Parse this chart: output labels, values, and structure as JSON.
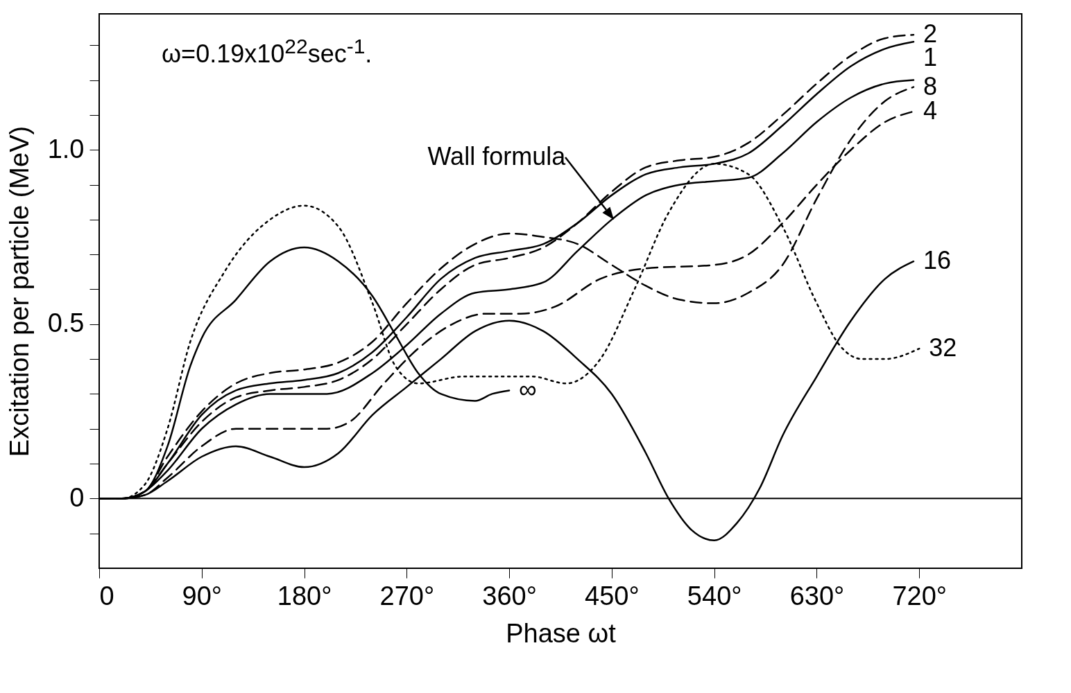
{
  "chart_data": {
    "type": "line",
    "xlabel": "Phase ωt",
    "ylabel": "Excitation per particle  (MeV)",
    "xlim": [
      0,
      810
    ],
    "ylim": [
      -0.2,
      1.39
    ],
    "xticks": [
      0,
      {
        "value": 90,
        "label": "90°"
      },
      {
        "value": 180,
        "label": "180°"
      },
      {
        "value": 270,
        "label": "270°"
      },
      {
        "value": 360,
        "label": "360°"
      },
      {
        "value": 450,
        "label": "450°"
      },
      {
        "value": 540,
        "label": "540°"
      },
      {
        "value": 630,
        "label": "630°"
      },
      {
        "value": 720,
        "label": "720°"
      }
    ],
    "yticks": [
      {
        "value": -0.1,
        "label": null
      },
      0,
      {
        "value": 0.1,
        "label": null
      },
      {
        "value": 0.2,
        "label": null
      },
      {
        "value": 0.3,
        "label": null
      },
      {
        "value": 0.4,
        "label": null
      },
      0.5,
      {
        "value": 0.6,
        "label": null
      },
      {
        "value": 0.7,
        "label": null
      },
      {
        "value": 0.8,
        "label": null
      },
      {
        "value": 0.9,
        "label": null
      },
      {
        "value": 1,
        "label": "1.0"
      },
      {
        "value": 1.1,
        "label": null
      },
      {
        "value": 1.2,
        "label": null
      },
      {
        "value": 1.3,
        "label": null
      }
    ],
    "grid": false,
    "series": [
      {
        "name": "2",
        "color": "#000000",
        "line_style": "dashed",
        "x": [
          0,
          20,
          40,
          60,
          90,
          120,
          150,
          180,
          210,
          240,
          270,
          300,
          330,
          360,
          390,
          420,
          450,
          480,
          510,
          540,
          570,
          600,
          630,
          660,
          690,
          715
        ],
        "values": [
          0,
          0,
          0.02,
          0.1,
          0.22,
          0.29,
          0.31,
          0.32,
          0.34,
          0.4,
          0.5,
          0.6,
          0.67,
          0.69,
          0.72,
          0.79,
          0.88,
          0.95,
          0.97,
          0.98,
          1.02,
          1.1,
          1.19,
          1.27,
          1.32,
          1.33
        ]
      },
      {
        "name": "1",
        "color": "#000000",
        "line_style": "solid",
        "x": [
          0,
          20,
          40,
          60,
          90,
          120,
          150,
          180,
          210,
          240,
          270,
          300,
          330,
          360,
          390,
          420,
          450,
          480,
          510,
          540,
          570,
          600,
          630,
          660,
          690,
          715
        ],
        "values": [
          0,
          0,
          0.02,
          0.1,
          0.24,
          0.31,
          0.33,
          0.34,
          0.36,
          0.42,
          0.52,
          0.63,
          0.69,
          0.71,
          0.73,
          0.79,
          0.87,
          0.93,
          0.95,
          0.96,
          0.99,
          1.07,
          1.16,
          1.24,
          1.29,
          1.31
        ]
      },
      {
        "name": "8",
        "color": "#000000",
        "line_style": "dashed",
        "x": [
          0,
          20,
          40,
          60,
          90,
          120,
          150,
          180,
          210,
          240,
          270,
          300,
          330,
          360,
          390,
          420,
          450,
          480,
          510,
          540,
          570,
          600,
          630,
          660,
          690,
          715
        ],
        "values": [
          0,
          0,
          0.02,
          0.12,
          0.25,
          0.33,
          0.36,
          0.37,
          0.39,
          0.45,
          0.56,
          0.66,
          0.73,
          0.76,
          0.75,
          0.73,
          0.67,
          0.61,
          0.57,
          0.56,
          0.59,
          0.67,
          0.86,
          1.03,
          1.14,
          1.18
        ]
      },
      {
        "name": "4",
        "color": "#000000",
        "line_style": "dashed",
        "x": [
          0,
          20,
          40,
          60,
          90,
          120,
          150,
          180,
          200,
          220,
          250,
          280,
          310,
          340,
          370,
          400,
          440,
          480,
          540,
          570,
          600,
          630,
          660,
          690,
          715
        ],
        "values": [
          0,
          0,
          0.01,
          0.06,
          0.15,
          0.2,
          0.2,
          0.2,
          0.2,
          0.22,
          0.33,
          0.43,
          0.5,
          0.53,
          0.53,
          0.55,
          0.63,
          0.66,
          0.67,
          0.7,
          0.79,
          0.9,
          1.0,
          1.08,
          1.11
        ]
      },
      {
        "name": "16",
        "color": "#000000",
        "line_style": "solid",
        "x": [
          0,
          20,
          40,
          60,
          90,
          120,
          150,
          180,
          210,
          240,
          270,
          300,
          330,
          360,
          390,
          420,
          450,
          480,
          500,
          520,
          540,
          560,
          580,
          600,
          630,
          660,
          690,
          715
        ],
        "values": [
          0,
          0,
          0.01,
          0.05,
          0.12,
          0.15,
          0.12,
          0.09,
          0.13,
          0.24,
          0.32,
          0.4,
          0.48,
          0.51,
          0.48,
          0.4,
          0.3,
          0.13,
          0,
          -0.09,
          -0.12,
          -0.07,
          0.03,
          0.18,
          0.35,
          0.51,
          0.63,
          0.68
        ]
      },
      {
        "name": "32",
        "color": "#000000",
        "line_style": "dotted",
        "x": [
          0,
          20,
          40,
          60,
          80,
          110,
          150,
          180,
          210,
          240,
          260,
          280,
          320,
          380,
          410,
          440,
          470,
          500,
          540,
          570,
          600,
          630,
          650,
          670,
          690,
          720
        ],
        "values": [
          0,
          0,
          0.04,
          0.2,
          0.45,
          0.65,
          0.8,
          0.84,
          0.78,
          0.56,
          0.38,
          0.33,
          0.35,
          0.35,
          0.33,
          0.4,
          0.6,
          0.82,
          0.96,
          0.93,
          0.78,
          0.56,
          0.44,
          0.4,
          0.4,
          0.43
        ]
      },
      {
        "name": "∞",
        "color": "#000000",
        "line_style": "solid",
        "x": [
          0,
          20,
          40,
          60,
          80,
          90,
          120,
          150,
          180,
          210,
          240,
          260,
          280,
          300,
          330,
          345,
          360
        ],
        "values": [
          0,
          0,
          0.02,
          0.15,
          0.38,
          0.46,
          0.57,
          0.68,
          0.72,
          0.68,
          0.58,
          0.47,
          0.36,
          0.3,
          0.28,
          0.3,
          0.31
        ]
      },
      {
        "color": "#000000",
        "line_style": "solid",
        "x": [
          0,
          20,
          40,
          60,
          90,
          120,
          150,
          200,
          240,
          270,
          300,
          330,
          360,
          390,
          420,
          450,
          480,
          510,
          540,
          570,
          600,
          630,
          660,
          690,
          715
        ],
        "values": [
          0,
          0,
          0.02,
          0.08,
          0.2,
          0.27,
          0.3,
          0.3,
          0.36,
          0.44,
          0.53,
          0.59,
          0.6,
          0.62,
          0.71,
          0.8,
          0.87,
          0.9,
          0.91,
          0.92,
          0.99,
          1.08,
          1.15,
          1.19,
          1.2
        ]
      }
    ],
    "ref_lines": [
      {
        "axis": "y",
        "value": 0,
        "color": "#000000"
      }
    ],
    "annotations": [
      "ω=0.19x10$^{22}$sec$^{-1}$.",
      {
        "text": "Wall formula",
        "x": 452,
        "y": 0.8
      }
    ]
  }
}
